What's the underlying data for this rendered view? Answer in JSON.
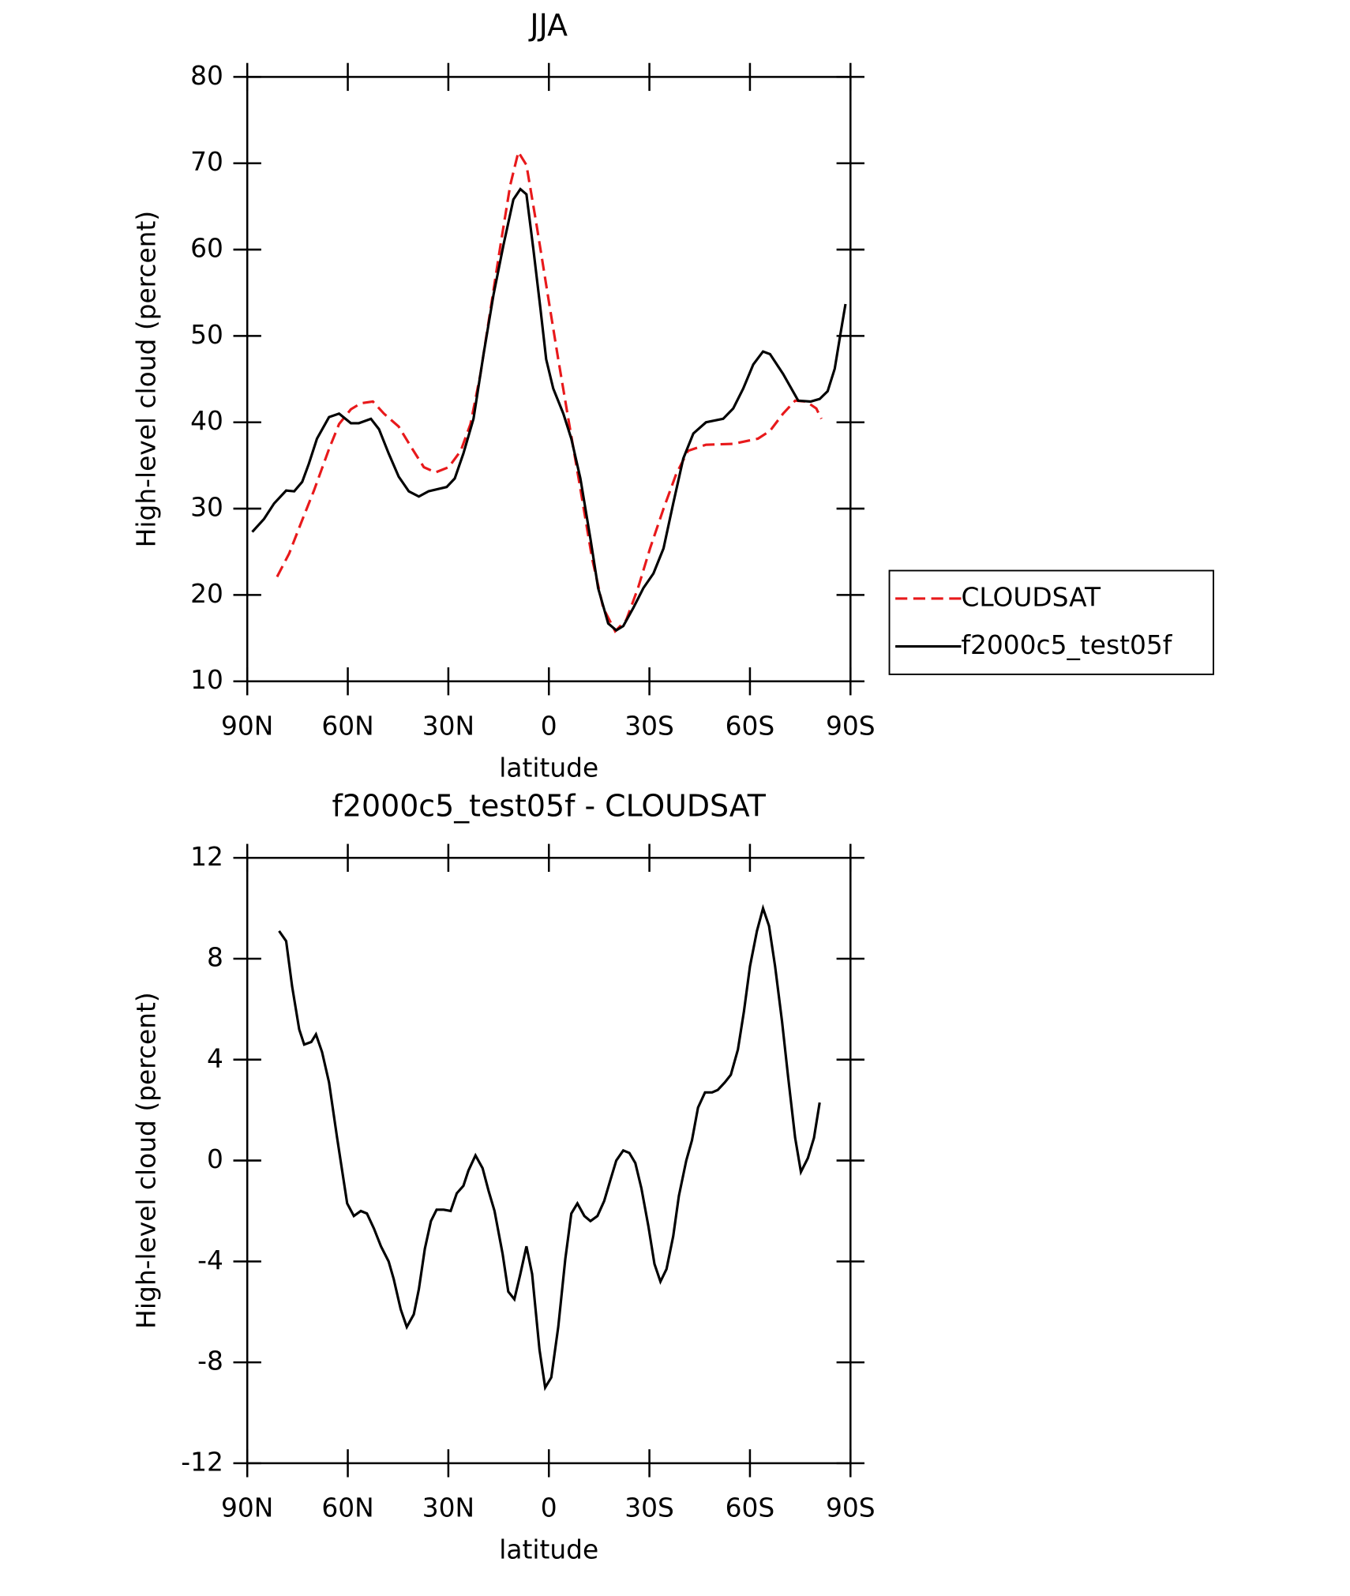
{
  "chart_data": [
    {
      "type": "line",
      "title": "JJA",
      "xlabel": "latitude",
      "ylabel": "High-level cloud (percent)",
      "xlim": [
        90,
        -90
      ],
      "ylim": [
        10,
        80
      ],
      "xticks": [
        {
          "value": 90,
          "label": "90N"
        },
        {
          "value": 60,
          "label": "60N"
        },
        {
          "value": 30,
          "label": "30N"
        },
        0,
        {
          "value": -30,
          "label": "30S"
        },
        {
          "value": -60,
          "label": "60S"
        },
        {
          "value": -90,
          "label": "90S"
        }
      ],
      "yticks": [
        10,
        20,
        30,
        40,
        50,
        60,
        70,
        80
      ],
      "legend": "right",
      "series": [
        {
          "name": "CLOUDSAT",
          "color": "#e8191b",
          "line_style": "dashed",
          "x": [
            81.1,
            77.5,
            74,
            70.1,
            65.6,
            62.6,
            59.1,
            56.1,
            52.5,
            49.2,
            44.8,
            41.2,
            37.3,
            33.8,
            29.9,
            26.3,
            23.4,
            20.4,
            17.4,
            14.4,
            11.5,
            9.1,
            6.7,
            3.7,
            0.1,
            -2.8,
            -5.8,
            -9.4,
            -12.9,
            -16.2,
            -19.8,
            -23.1,
            -26.6,
            -30.2,
            -34.2,
            -38,
            -41.5,
            -46.9,
            -55,
            -62.4,
            -66,
            -69.9,
            -73.5,
            -76.8,
            -79.8,
            -81.3
          ],
          "values": [
            22.1,
            24.8,
            28.3,
            32.1,
            36.9,
            39.8,
            41.5,
            42.2,
            42.4,
            41.0,
            39.5,
            37.2,
            34.8,
            34.2,
            34.8,
            36.7,
            39.8,
            45.6,
            53.1,
            60.6,
            67.5,
            71.3,
            69.8,
            62.9,
            54.2,
            47.3,
            40.4,
            32.3,
            24.2,
            18.5,
            15.8,
            17.1,
            20.8,
            25.4,
            30.0,
            34.0,
            36.7,
            37.4,
            37.5,
            38.1,
            39.0,
            41.0,
            42.5,
            42.4,
            41.6,
            40.4
          ]
        },
        {
          "name": "f2000c5_test05f",
          "color": "#000000",
          "line_style": "solid",
          "x": [
            88.5,
            85,
            82,
            78.4,
            76,
            73.6,
            71.6,
            69.2,
            65.6,
            62.6,
            59.1,
            56.7,
            53.1,
            50.7,
            47.8,
            44.8,
            41.8,
            38.8,
            35.9,
            30.5,
            28.1,
            25.5,
            22.5,
            19.5,
            16.5,
            13.5,
            10.6,
            8.5,
            6.7,
            4.6,
            2.5,
            0.8,
            -1.3,
            -4.3,
            -6.7,
            -9.4,
            -12.4,
            -14.7,
            -17.7,
            -20.1,
            -22.2,
            -25.2,
            -28.2,
            -31.2,
            -34.2,
            -37.1,
            -40.1,
            -43.1,
            -46.9,
            -52,
            -55,
            -58,
            -61,
            -63.9,
            -66,
            -69.9,
            -74.4,
            -78.1,
            -80.8,
            -83.2,
            -85.3,
            -87,
            -88.5
          ],
          "values": [
            27.3,
            28.8,
            30.6,
            32.1,
            32.0,
            33.1,
            35.2,
            38.1,
            40.6,
            41.0,
            39.9,
            39.9,
            40.4,
            39.2,
            36.4,
            33.7,
            32.0,
            31.4,
            32.0,
            32.5,
            33.5,
            36.4,
            40.4,
            47.9,
            54.8,
            60.6,
            65.8,
            67.0,
            66.4,
            60.0,
            53.1,
            47.3,
            43.9,
            41.0,
            38.1,
            33.5,
            26.5,
            20.8,
            16.7,
            15.9,
            16.4,
            18.5,
            20.8,
            22.5,
            25.4,
            30.6,
            35.8,
            38.7,
            40.0,
            40.4,
            41.6,
            43.9,
            46.7,
            48.2,
            47.9,
            45.6,
            42.5,
            42.4,
            42.7,
            43.6,
            46.2,
            50.2,
            53.7
          ]
        }
      ]
    },
    {
      "type": "line",
      "title": "f2000c5_test05f - CLOUDSAT",
      "xlabel": "latitude",
      "ylabel": "High-level cloud (percent)",
      "xlim": [
        90,
        -90
      ],
      "ylim": [
        -12,
        12
      ],
      "xticks": [
        {
          "value": 90,
          "label": "90N"
        },
        {
          "value": 60,
          "label": "60N"
        },
        {
          "value": 30,
          "label": "30N"
        },
        0,
        {
          "value": -30,
          "label": "30S"
        },
        {
          "value": -60,
          "label": "60S"
        },
        {
          "value": -90,
          "label": "90S"
        }
      ],
      "yticks": [
        -12,
        -8,
        -4,
        0,
        4,
        8,
        12
      ],
      "color": "#000000",
      "x": [
        80.5,
        78.4,
        76.6,
        74.5,
        73,
        70.9,
        69.5,
        67.7,
        65.6,
        63.2,
        60.2,
        58.2,
        56.1,
        54.3,
        52.2,
        50.1,
        47.8,
        46.3,
        44.2,
        42.4,
        40.3,
        38.8,
        37,
        35.2,
        33.5,
        31.4,
        29.3,
        27.5,
        25.5,
        24,
        21.9,
        19.8,
        18,
        16.2,
        13.8,
        12.1,
        10.3,
        8.5,
        6.7,
        5,
        2.8,
        1.1,
        -0.7,
        -2.8,
        -4.9,
        -6.7,
        -8.5,
        -10.6,
        -12.4,
        -14.5,
        -16.5,
        -18.3,
        -20.1,
        -22.2,
        -24,
        -25.8,
        -27.6,
        -29.7,
        -31.5,
        -33.3,
        -35.1,
        -37.1,
        -38.8,
        -41,
        -42.7,
        -44.5,
        -46.6,
        -48.7,
        -50.4,
        -52.5,
        -54.3,
        -56.4,
        -58.2,
        -60,
        -62.1,
        -63.9,
        -65.7,
        -67.5,
        -69.6,
        -71.4,
        -73.5,
        -75.2,
        -77.3,
        -79.1,
        -80.8
      ],
      "values": [
        9.1,
        8.7,
        6.9,
        5.2,
        4.6,
        4.7,
        5.0,
        4.3,
        3.1,
        0.9,
        -1.7,
        -2.2,
        -2.0,
        -2.1,
        -2.7,
        -3.4,
        -4.0,
        -4.7,
        -5.9,
        -6.6,
        -6.1,
        -5.1,
        -3.5,
        -2.4,
        -1.95,
        -1.95,
        -2.0,
        -1.3,
        -1.0,
        -0.4,
        0.2,
        -0.3,
        -1.2,
        -2.0,
        -3.7,
        -5.2,
        -5.5,
        -4.5,
        -3.4,
        -4.5,
        -7.5,
        -9.0,
        -8.6,
        -6.6,
        -3.9,
        -2.1,
        -1.7,
        -2.2,
        -2.4,
        -2.2,
        -1.6,
        -0.8,
        0.0,
        0.4,
        0.3,
        -0.1,
        -1.1,
        -2.6,
        -4.1,
        -4.8,
        -4.3,
        -3.0,
        -1.4,
        0.0,
        0.8,
        2.1,
        2.7,
        2.7,
        2.8,
        3.1,
        3.4,
        4.4,
        5.9,
        7.7,
        9.1,
        10.0,
        9.3,
        7.7,
        5.5,
        3.3,
        0.9,
        -0.45,
        0.1,
        0.9,
        2.3
      ]
    }
  ]
}
